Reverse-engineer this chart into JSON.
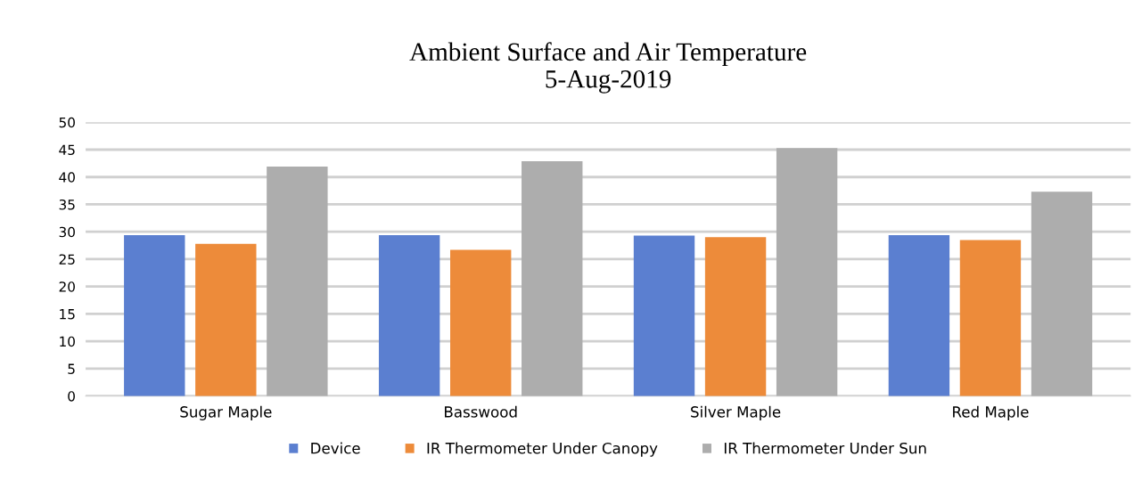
{
  "chart_data": {
    "type": "bar",
    "title": "Ambient Surface and Air Temperature\n5-Aug-2019",
    "categories": [
      "Sugar Maple",
      "Basswood",
      "Silver Maple",
      "Red Maple"
    ],
    "series": [
      {
        "name": "Device",
        "color": "#5b7fd0",
        "values": [
          29.4,
          29.4,
          29.3,
          29.4
        ]
      },
      {
        "name": "IR Thermometer Under Canopy",
        "color": "#ed8b3a",
        "values": [
          27.8,
          26.7,
          29.0,
          28.5
        ]
      },
      {
        "name": "IR Thermometer Under Sun",
        "color": "#adadad",
        "values": [
          41.9,
          42.9,
          45.3,
          37.3
        ]
      }
    ],
    "ylim": [
      0,
      50
    ],
    "yticks": [
      0,
      5,
      10,
      15,
      20,
      25,
      30,
      35,
      40,
      45,
      50
    ],
    "grid": "y",
    "legend": "bottom"
  }
}
